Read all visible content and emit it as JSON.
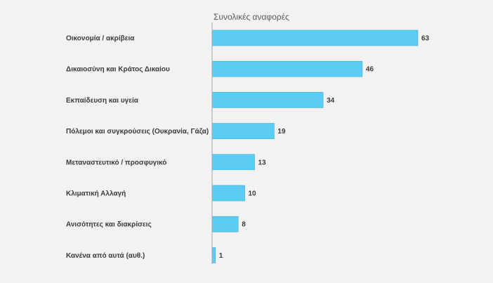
{
  "chart_data": {
    "type": "bar",
    "orientation": "horizontal",
    "title": "Συνολικές αναφορές",
    "categories": [
      "Οικονομία / ακρίβεια",
      "Δικαιοσύνη και Κράτος Δικαίου",
      "Εκπαίδευση και υγεία",
      "Πόλεμοι και συγκρούσεις (Ουκρανία, Γάζα)",
      "Μεταναστευτικό / προσφυγικό",
      "Κλιματική Αλλαγή",
      "Ανισότητες και διακρίσεις",
      "Κανένα από αυτά (αυθ.)"
    ],
    "values": [
      63,
      46,
      34,
      19,
      13,
      10,
      8,
      1
    ],
    "data_labels": [
      "63",
      "46",
      "34",
      "19",
      "13",
      "10",
      "8",
      "1"
    ],
    "xlim": [
      0,
      63
    ],
    "grid": false,
    "legend": "none"
  },
  "colors": {
    "bar": "#5bcdf4",
    "bar_stroke": "#3aa9d3",
    "axis": "#a6a6a6",
    "background": "#f2f2f2"
  }
}
